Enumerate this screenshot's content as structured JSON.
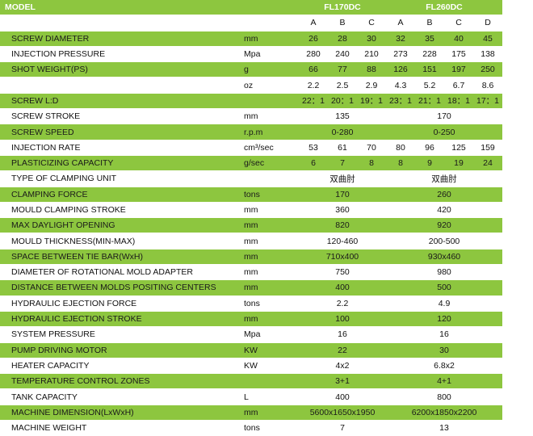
{
  "header": {
    "model_label": "MODEL",
    "models": [
      "FL170DC",
      "FL260DC"
    ]
  },
  "sub_header": [
    "A",
    "B",
    "C",
    "A",
    "B",
    "C",
    "D"
  ],
  "rows": [
    {
      "name": "SCREW DIAMETER",
      "unit": "mm",
      "kind": "vals",
      "vals": [
        "26",
        "28",
        "30",
        "32",
        "35",
        "40",
        "45"
      ]
    },
    {
      "name": "INJECTION PRESSURE",
      "unit": "Mpa",
      "kind": "vals",
      "vals": [
        "280",
        "240",
        "210",
        "273",
        "228",
        "175",
        "138"
      ]
    },
    {
      "name": "SHOT WEIGHT(PS)",
      "unit": "g",
      "kind": "vals",
      "vals": [
        "66",
        "77",
        "88",
        "126",
        "151",
        "197",
        "250"
      ]
    },
    {
      "name": "",
      "unit": "oz",
      "kind": "vals",
      "vals": [
        "2.2",
        "2.5",
        "2.9",
        "4.3",
        "5.2",
        "6.7",
        "8.6"
      ]
    },
    {
      "name": "SCREW L:D",
      "unit": "",
      "kind": "vals",
      "vals": [
        "22：1",
        "20：1",
        "19：1",
        "23：1",
        "21：1",
        "18：1",
        "17：1"
      ]
    },
    {
      "name": "SCREW STROKE",
      "unit": "mm",
      "kind": "span",
      "m1": "135",
      "m2": "170"
    },
    {
      "name": "SCREW SPEED",
      "unit": "r.p.m",
      "kind": "span",
      "m1": "0-280",
      "m2": "0-250"
    },
    {
      "name": "INJECTION RATE",
      "unit": "cm³/sec",
      "kind": "vals",
      "vals": [
        "53",
        "61",
        "70",
        "80",
        "96",
        "125",
        "159"
      ]
    },
    {
      "name": "PLASTICIZING CAPACITY",
      "unit": "g/sec",
      "kind": "vals",
      "vals": [
        "6",
        "7",
        "8",
        "8",
        "9",
        "19",
        "24"
      ]
    },
    {
      "name": "TYPE OF CLAMPING UNIT",
      "unit": "",
      "kind": "span",
      "m1": "双曲肘",
      "m2": "双曲肘"
    },
    {
      "name": "CLAMPING FORCE",
      "unit": "tons",
      "kind": "span",
      "m1": "170",
      "m2": "260"
    },
    {
      "name": "MOULD CLAMPING STROKE",
      "unit": "mm",
      "kind": "span",
      "m1": "360",
      "m2": "420"
    },
    {
      "name": "MAX DAYLIGHT OPENING",
      "unit": "mm",
      "kind": "span",
      "m1": "820",
      "m2": "920"
    },
    {
      "name": "MOULD THICKNESS(MIN-MAX)",
      "unit": "mm",
      "kind": "span",
      "m1": "120-460",
      "m2": "200-500"
    },
    {
      "name": "SPACE BETWEEN TIE BAR(WxH)",
      "unit": "mm",
      "kind": "span",
      "m1": "710x400",
      "m2": "930x460"
    },
    {
      "name": "DIAMETER OF ROTATIONAL MOLD ADAPTER",
      "unit": "mm",
      "kind": "span",
      "m1": "750",
      "m2": "980"
    },
    {
      "name": "DISTANCE BETWEEN MOLDS POSITING CENTERS",
      "unit": "mm",
      "kind": "span",
      "m1": "400",
      "m2": "500"
    },
    {
      "name": "HYDRAULIC EJECTION FORCE",
      "unit": "tons",
      "kind": "span",
      "m1": "2.2",
      "m2": "4.9"
    },
    {
      "name": "HYDRAULIC EJECTION STROKE",
      "unit": "mm",
      "kind": "span",
      "m1": "100",
      "m2": "120"
    },
    {
      "name": "SYSTEM PRESSURE",
      "unit": "Mpa",
      "kind": "span",
      "m1": "16",
      "m2": "16"
    },
    {
      "name": "PUMP DRIVING MOTOR",
      "unit": "KW",
      "kind": "span",
      "m1": "22",
      "m2": "30"
    },
    {
      "name": "HEATER CAPACITY",
      "unit": "KW",
      "kind": "span",
      "m1": "4x2",
      "m2": "6.8x2"
    },
    {
      "name": "TEMPERATURE CONTROL ZONES",
      "unit": "",
      "kind": "span",
      "m1": "3+1",
      "m2": "4+1"
    },
    {
      "name": "TANK CAPACITY",
      "unit": "L",
      "kind": "span",
      "m1": "400",
      "m2": "800"
    },
    {
      "name": "MACHINE DIMENSION(LxWxH)",
      "unit": "mm",
      "kind": "span",
      "m1": "5600x1650x1950",
      "m2": "6200x1850x2200"
    },
    {
      "name": "MACHINE WEIGHT",
      "unit": "tons",
      "kind": "span",
      "m1": "7",
      "m2": "13"
    }
  ],
  "colors": {
    "green": "#8dc63f",
    "white": "#ffffff"
  }
}
